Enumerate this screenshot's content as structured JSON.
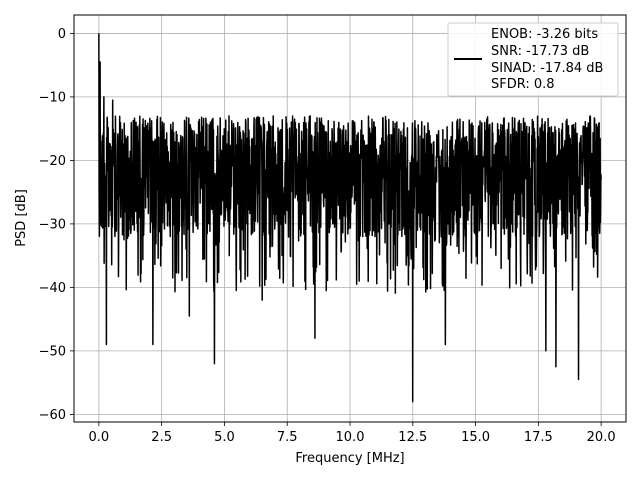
{
  "chart_data": {
    "type": "line",
    "title": "",
    "xlabel": "Frequency [MHz]",
    "ylabel": "PSD [dB]",
    "xlim": [
      -0.99,
      20.99
    ],
    "ylim": [
      -61.2,
      2.9
    ],
    "xticks": [
      0.0,
      2.5,
      5.0,
      7.5,
      10.0,
      12.5,
      15.0,
      17.5,
      20.0
    ],
    "xtick_labels": [
      "0.0",
      "2.5",
      "5.0",
      "7.5",
      "10.0",
      "12.5",
      "15.0",
      "17.5",
      "20.0"
    ],
    "yticks": [
      0,
      -10,
      -20,
      -30,
      -40,
      -50,
      -60
    ],
    "ytick_labels": [
      "0",
      "−10",
      "−20",
      "−30",
      "−40",
      "−50",
      "−60"
    ],
    "grid": true,
    "legend_position": "top-right",
    "series": [
      {
        "color": "#000000",
        "x_range_mhz": [
          0.0,
          20.0
        ],
        "baseline_db": -21.5,
        "upper_envelope_db": -13.0,
        "lower_envelope_db": -32.0,
        "notable_points": [
          {
            "x": 0.0,
            "y": 0.0
          },
          {
            "x": 0.05,
            "y": -4.5
          },
          {
            "x": 0.2,
            "y": -10.0
          },
          {
            "x": 0.3,
            "y": -49.0
          },
          {
            "x": 0.55,
            "y": -10.5
          },
          {
            "x": 1.0,
            "y": -32.5
          },
          {
            "x": 2.15,
            "y": -49.0
          },
          {
            "x": 3.6,
            "y": -44.5
          },
          {
            "x": 4.6,
            "y": -52.0
          },
          {
            "x": 6.5,
            "y": -42.0
          },
          {
            "x": 8.6,
            "y": -48.0
          },
          {
            "x": 12.5,
            "y": -58.0
          },
          {
            "x": 13.8,
            "y": -49.0
          },
          {
            "x": 17.8,
            "y": -50.0
          },
          {
            "x": 18.2,
            "y": -52.5
          },
          {
            "x": 19.1,
            "y": -54.5
          },
          {
            "x": 20.0,
            "y": -23.0
          }
        ]
      }
    ],
    "legend_lines": [
      "ENOB: -3.26 bits",
      "SNR: -17.73 dB",
      "SINAD: -17.84 dB",
      "SFDR: 0.8"
    ]
  }
}
